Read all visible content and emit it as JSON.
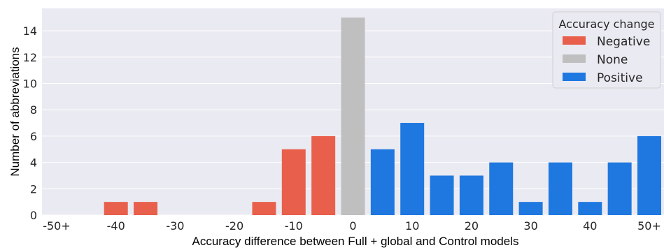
{
  "chart_data": {
    "type": "bar",
    "x_categories": [
      "-50+",
      "-45",
      "-40",
      "-35",
      "-30",
      "-25",
      "-20",
      "-15",
      "-10",
      "-5",
      "0",
      "5",
      "10",
      "15",
      "20",
      "25",
      "30",
      "35",
      "40",
      "45",
      "50+"
    ],
    "x_tick_labels": [
      "-50+",
      "-40",
      "-30",
      "-20",
      "-10",
      "0",
      "10",
      "20",
      "30",
      "40",
      "50+"
    ],
    "y_ticks": [
      "0",
      "2",
      "4",
      "6",
      "8",
      "10",
      "12",
      "14"
    ],
    "values": [
      0,
      0,
      1,
      1,
      0,
      0,
      0,
      1,
      5,
      6,
      15,
      5,
      7,
      3,
      3,
      4,
      1,
      4,
      1,
      4,
      6
    ],
    "change": [
      "Negative",
      "Negative",
      "Negative",
      "Negative",
      "Negative",
      "Negative",
      "Negative",
      "Negative",
      "Negative",
      "Negative",
      "None",
      "Positive",
      "Positive",
      "Positive",
      "Positive",
      "Positive",
      "Positive",
      "Positive",
      "Positive",
      "Positive",
      "Positive"
    ],
    "xlabel": "Accuracy difference between Full + global and Control models",
    "ylabel": "Number of abbreviations",
    "ylim": [
      0,
      15.7
    ],
    "grid": true,
    "legend": {
      "title": "Accuracy change",
      "placement": "top-right",
      "entries": [
        {
          "label": "Negative",
          "color": "#e8604c"
        },
        {
          "label": "None",
          "color": "#bfbfbf"
        },
        {
          "label": "Positive",
          "color": "#1f78e0"
        }
      ]
    },
    "colors": {
      "Negative": "#e8604c",
      "None": "#bfbfbf",
      "Positive": "#1f78e0",
      "background": "#eaeaf2",
      "grid": "#ffffff"
    }
  }
}
